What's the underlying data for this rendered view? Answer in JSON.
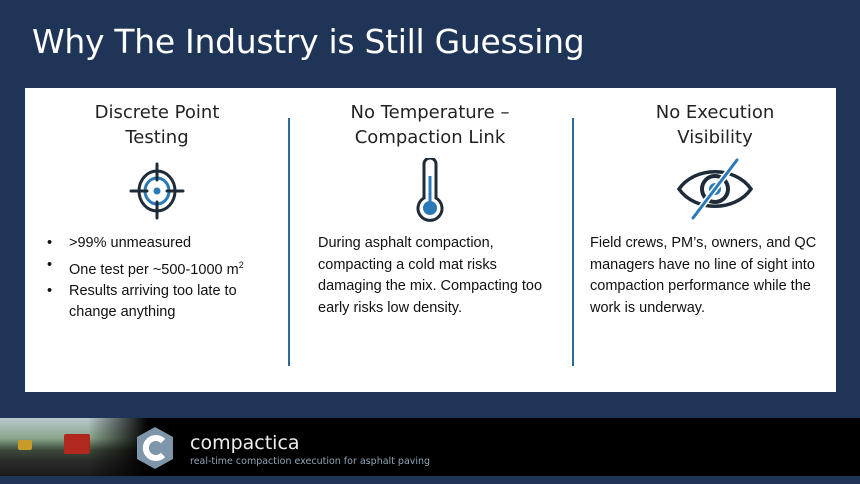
{
  "title": "Why The Industry is Still Guessing",
  "columns": [
    {
      "heading": [
        "Discrete Point",
        "Testing"
      ],
      "icon": "target-icon",
      "bullets": [
        ">99% unmeasured",
        "One test per ~500-1000 m",
        "Results arriving too late to change anything"
      ],
      "superscript": "2"
    },
    {
      "heading": [
        "No Temperature –",
        "Compaction Link"
      ],
      "icon": "thermometer-icon",
      "text": "During asphalt compaction, compacting a cold mat risks damaging the mix. Compacting too early risks low density."
    },
    {
      "heading": [
        "No Execution",
        "Visibility"
      ],
      "icon": "eye-slash-icon",
      "text": "Field crews, PM’s, owners, and QC managers have no line of sight into compaction performance while the work is underway."
    }
  ],
  "footer": {
    "brand": "compactica",
    "tagline": "real-time compaction execution for asphalt paving"
  },
  "colors": {
    "background": "#1f3558",
    "accent": "#2a7ab8",
    "dark": "#1e2b38"
  }
}
